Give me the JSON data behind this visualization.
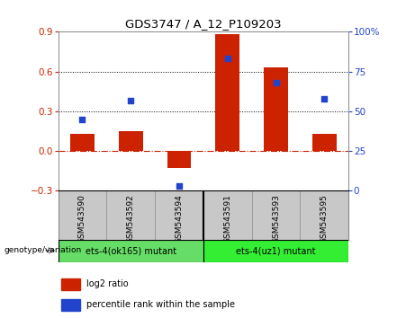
{
  "title": "GDS3747 / A_12_P109203",
  "samples": [
    "GSM543590",
    "GSM543592",
    "GSM543594",
    "GSM543591",
    "GSM543593",
    "GSM543595"
  ],
  "log2_ratio": [
    0.13,
    0.15,
    -0.13,
    0.88,
    0.63,
    0.13
  ],
  "percentile_rank": [
    45,
    57,
    3,
    83,
    68,
    58
  ],
  "groups": [
    {
      "label": "ets-4(ok165) mutant",
      "indices": [
        0,
        1,
        2
      ],
      "color": "#66dd66"
    },
    {
      "label": "ets-4(uz1) mutant",
      "indices": [
        3,
        4,
        5
      ],
      "color": "#33ee33"
    }
  ],
  "bar_color": "#cc2200",
  "dot_color": "#2244cc",
  "left_ylim": [
    -0.3,
    0.9
  ],
  "right_ylim": [
    0,
    100
  ],
  "left_yticks": [
    -0.3,
    0.0,
    0.3,
    0.6,
    0.9
  ],
  "right_yticks": [
    0,
    25,
    50,
    75,
    100
  ],
  "hline_dotted": [
    0.3,
    0.6
  ],
  "hline_zero_color": "#cc2200",
  "background_label": "#c8c8c8",
  "legend_bar_label": "log2 ratio",
  "legend_dot_label": "percentile rank within the sample",
  "genotype_label": "genotype/variation"
}
